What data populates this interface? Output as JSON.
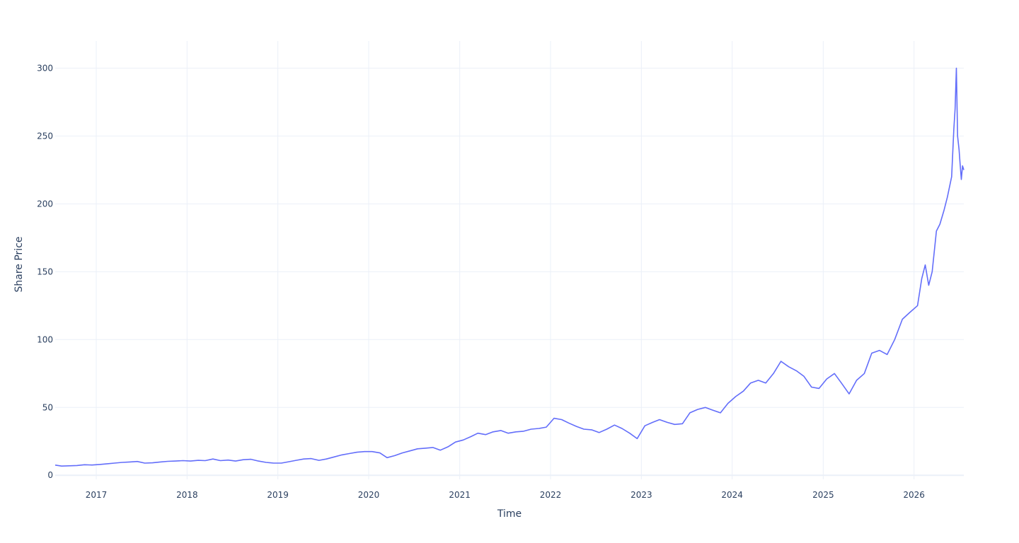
{
  "chart_data": {
    "type": "line",
    "title": "",
    "xlabel": "Time",
    "ylabel": "Share Price",
    "xlim": [
      "2016-07-20",
      "2026-07-20"
    ],
    "ylim": [
      -3,
      320
    ],
    "grid": true,
    "legend": "none",
    "line_color": "#636efa",
    "x_ticks": [
      "2017",
      "2018",
      "2019",
      "2020",
      "2021",
      "2022",
      "2023",
      "2024",
      "2025",
      "2026"
    ],
    "y_ticks": [
      0,
      50,
      100,
      150,
      200,
      250,
      300
    ],
    "series": [
      {
        "name": "",
        "x": [
          "2016-07-20",
          "2016-08-15",
          "2016-09-15",
          "2016-10-15",
          "2016-11-15",
          "2016-12-15",
          "2017-01-15",
          "2017-02-15",
          "2017-03-15",
          "2017-04-15",
          "2017-05-15",
          "2017-06-15",
          "2017-07-15",
          "2017-08-15",
          "2017-09-15",
          "2017-10-15",
          "2017-11-15",
          "2017-12-15",
          "2018-01-15",
          "2018-02-15",
          "2018-03-15",
          "2018-04-15",
          "2018-05-15",
          "2018-06-15",
          "2018-07-15",
          "2018-08-15",
          "2018-09-15",
          "2018-10-15",
          "2018-11-15",
          "2018-12-15",
          "2019-01-15",
          "2019-02-15",
          "2019-03-15",
          "2019-04-15",
          "2019-05-15",
          "2019-06-15",
          "2019-07-15",
          "2019-08-15",
          "2019-09-15",
          "2019-10-15",
          "2019-11-15",
          "2019-12-15",
          "2020-01-15",
          "2020-02-15",
          "2020-03-15",
          "2020-04-15",
          "2020-05-15",
          "2020-06-15",
          "2020-07-15",
          "2020-08-15",
          "2020-09-15",
          "2020-10-15",
          "2020-11-15",
          "2020-12-15",
          "2021-01-15",
          "2021-02-15",
          "2021-03-15",
          "2021-04-15",
          "2021-05-15",
          "2021-06-15",
          "2021-07-15",
          "2021-08-15",
          "2021-09-15",
          "2021-10-15",
          "2021-11-15",
          "2021-12-15",
          "2022-01-15",
          "2022-02-15",
          "2022-03-15",
          "2022-04-15",
          "2022-05-15",
          "2022-06-15",
          "2022-07-15",
          "2022-08-15",
          "2022-09-15",
          "2022-10-15",
          "2022-11-15",
          "2022-12-15",
          "2023-01-15",
          "2023-02-15",
          "2023-03-15",
          "2023-04-15",
          "2023-05-15",
          "2023-06-15",
          "2023-07-15",
          "2023-08-15",
          "2023-09-15",
          "2023-10-15",
          "2023-11-15",
          "2023-12-15",
          "2024-01-15",
          "2024-02-15",
          "2024-03-15",
          "2024-04-15",
          "2024-05-15",
          "2024-06-15",
          "2024-07-15",
          "2024-08-15",
          "2024-09-15",
          "2024-10-15",
          "2024-11-15",
          "2024-12-15",
          "2025-01-15",
          "2025-02-15",
          "2025-03-15",
          "2025-04-15",
          "2025-05-15",
          "2025-06-15",
          "2025-07-15",
          "2025-08-15",
          "2025-09-15",
          "2025-10-15",
          "2025-11-15",
          "2025-12-15",
          "2026-01-15",
          "2026-02-01",
          "2026-02-15",
          "2026-03-01",
          "2026-03-15",
          "2026-04-01",
          "2026-04-15",
          "2026-05-01",
          "2026-05-15",
          "2026-06-01",
          "2026-06-10",
          "2026-06-15",
          "2026-06-20",
          "2026-06-25",
          "2026-07-01",
          "2026-07-05",
          "2026-07-10",
          "2026-07-15",
          "2026-07-20"
        ],
        "y": [
          7.5,
          6.8,
          7.0,
          7.2,
          7.8,
          7.6,
          8.0,
          8.5,
          9.0,
          9.5,
          9.8,
          10.2,
          9.0,
          9.2,
          9.8,
          10.3,
          10.5,
          10.8,
          10.5,
          11.0,
          10.8,
          12.0,
          10.8,
          11.2,
          10.5,
          11.5,
          11.8,
          10.5,
          9.5,
          9.0,
          9.0,
          10.0,
          11.0,
          12.0,
          12.3,
          11.0,
          12.0,
          13.5,
          15.0,
          16.0,
          17.0,
          17.5,
          17.5,
          16.5,
          13.0,
          14.5,
          16.5,
          18.0,
          19.5,
          20.0,
          20.5,
          18.5,
          21.0,
          24.5,
          26.0,
          28.5,
          31.0,
          30.0,
          32.0,
          33.0,
          31.0,
          32.0,
          32.5,
          34.0,
          34.5,
          35.5,
          42.0,
          41.0,
          38.5,
          36.0,
          34.0,
          33.5,
          31.5,
          34.0,
          37.0,
          34.5,
          31.0,
          27.0,
          36.5,
          39.0,
          41.0,
          39.0,
          37.5,
          38.0,
          46.0,
          48.5,
          50.0,
          48.0,
          46.0,
          53.0,
          58.0,
          62.0,
          68.0,
          70.0,
          68.0,
          75.0,
          84.0,
          80.0,
          77.0,
          73.0,
          65.0,
          64.0,
          71.0,
          75.0,
          68.0,
          60.0,
          70.0,
          75.0,
          90.0,
          92.0,
          89.0,
          100.0,
          115.0,
          120.0,
          125.0,
          145.0,
          155.0,
          140.0,
          150.0,
          180.0,
          185.0,
          195.0,
          205.0,
          220.0,
          255.0,
          270.0,
          300.0,
          250.0,
          240.0,
          230.0,
          218.0,
          228.0,
          225.0
        ]
      }
    ]
  }
}
